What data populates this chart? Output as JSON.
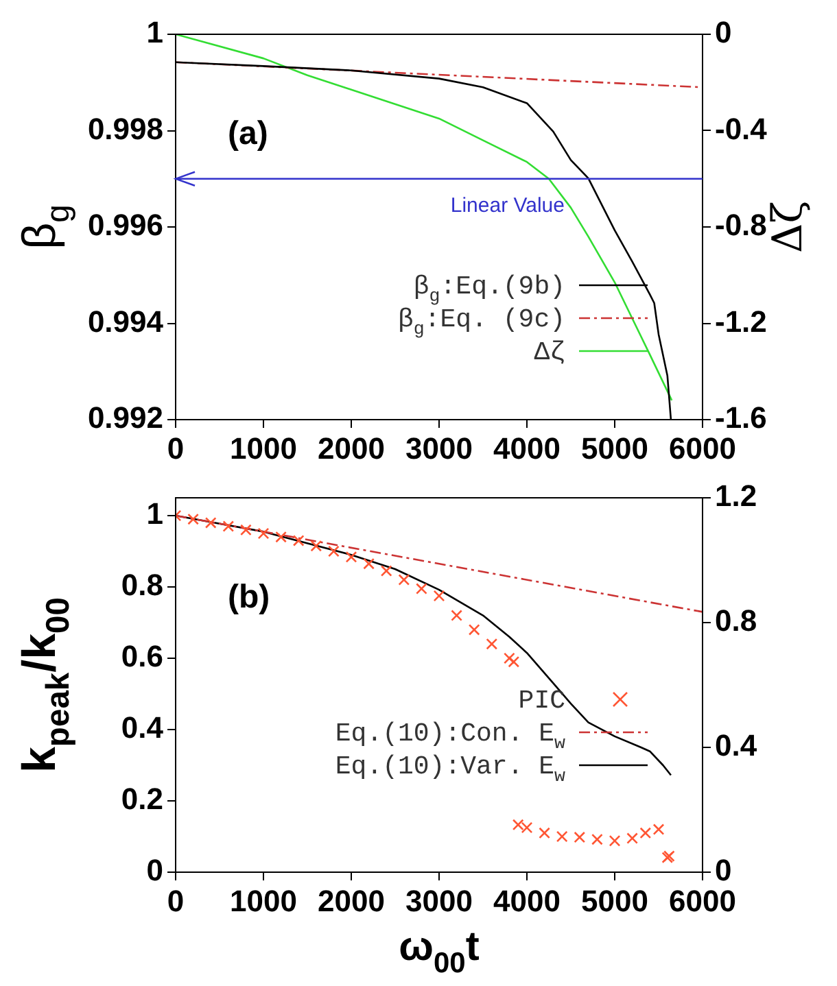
{
  "chart_data": [
    {
      "type": "line",
      "ylabel": "β$_{g}$",
      "y2label": "Δζ",
      "annotations": [
        "(a)"
      ],
      "xlim": [
        0,
        6000
      ],
      "xticks": [
        0,
        1000,
        2000,
        3000,
        4000,
        5000,
        6000
      ],
      "ylim": [
        0.992,
        1
      ],
      "yticks": [
        0.992,
        0.994,
        0.996,
        0.998,
        1
      ],
      "y2lim": [
        -1.6,
        0
      ],
      "y2ticks": [
        -1.6,
        -1.2,
        -0.8,
        -0.4,
        0
      ],
      "grid": false,
      "legend": "bottom right",
      "ref_lines": [
        {
          "axis": "y",
          "value": 0.997,
          "label": "Linear Value",
          "color": "#3333cc"
        }
      ],
      "series": [
        {
          "name": "β$_{g}$:Eq.(9b)",
          "color": "#000000",
          "line_style": "solid",
          "marker": "none",
          "x": [
            0,
            1000,
            2000,
            3000,
            3500,
            4000,
            4300,
            4500,
            4700,
            5000,
            5200,
            5400,
            5450,
            5500,
            5600,
            5640
          ],
          "values": [
            0.99942,
            0.99934,
            0.99925,
            0.99908,
            0.9989,
            0.99857,
            0.99798,
            0.99739,
            0.99701,
            0.99593,
            0.99528,
            0.9946,
            0.99442,
            0.99377,
            0.99291,
            0.992
          ]
        },
        {
          "name": "β$_{g}$:Eq. (9c)",
          "color": "#cc3333",
          "line_style": "dashed",
          "marker": "none",
          "x": [
            0,
            6000
          ],
          "values": [
            0.99942,
            0.9989
          ]
        },
        {
          "name": "Δζ",
          "color": "#33dd33",
          "line_style": "solid",
          "marker": "none",
          "axis": "y2",
          "x": [
            0,
            1000,
            1500,
            2000,
            3000,
            3500,
            4000,
            4250,
            4500,
            4700,
            5000,
            5200,
            5400,
            5650
          ],
          "values": [
            0,
            -0.1,
            -0.17,
            -0.23,
            -0.35,
            -0.44,
            -0.53,
            -0.6,
            -0.72,
            -0.84,
            -1.03,
            -1.18,
            -1.33,
            -1.52
          ]
        }
      ]
    },
    {
      "type": "line",
      "xlabel": "ω$_{00}$t",
      "ylabel": "k$_{peak}$/k$_{00}$",
      "annotations": [
        "(b)"
      ],
      "xlim": [
        0,
        6000
      ],
      "xticks": [
        0,
        1000,
        2000,
        3000,
        4000,
        5000,
        6000
      ],
      "ylim": [
        0,
        1.05
      ],
      "yticks": [
        0,
        0.2,
        0.4,
        0.6,
        0.8,
        1
      ],
      "y2lim": [
        0,
        1.2
      ],
      "y2ticks": [
        0,
        0.4,
        0.8,
        1.2
      ],
      "grid": false,
      "legend": "bottom right",
      "series": [
        {
          "name": "PIC",
          "type": "scatter",
          "color": "#ff5533",
          "marker": "cross",
          "x": [
            0,
            200,
            400,
            600,
            800,
            1000,
            1200,
            1400,
            1600,
            1800,
            2000,
            2200,
            2400,
            2600,
            2800,
            3000,
            3200,
            3400,
            3600,
            3800,
            3850,
            3900,
            4000,
            4200,
            4400,
            4600,
            4800,
            5000,
            5200,
            5350,
            5500,
            5600,
            5620
          ],
          "values": [
            1.0,
            0.99,
            0.98,
            0.97,
            0.96,
            0.95,
            0.94,
            0.93,
            0.915,
            0.9,
            0.884,
            0.865,
            0.845,
            0.82,
            0.795,
            0.775,
            0.72,
            0.68,
            0.64,
            0.6,
            0.59,
            0.133,
            0.125,
            0.11,
            0.1,
            0.098,
            0.092,
            0.088,
            0.095,
            0.11,
            0.12,
            0.041,
            0.045
          ]
        },
        {
          "name": "Eq.(10):Con. E$_{w}$",
          "color": "#cc3333",
          "line_style": "dashed",
          "marker": "none",
          "x": [
            0,
            6000
          ],
          "values": [
            1.0,
            0.73
          ]
        },
        {
          "name": "Eq.(10):Var. E$_{w}$",
          "color": "#000000",
          "line_style": "solid",
          "marker": "none",
          "x": [
            0,
            1000,
            2000,
            2500,
            3000,
            3500,
            3800,
            4000,
            4300,
            4500,
            4700,
            5000,
            5300,
            5400,
            5550,
            5640
          ],
          "values": [
            1.0,
            0.955,
            0.89,
            0.85,
            0.792,
            0.72,
            0.66,
            0.615,
            0.53,
            0.473,
            0.42,
            0.381,
            0.35,
            0.339,
            0.3,
            0.272
          ]
        }
      ]
    }
  ]
}
